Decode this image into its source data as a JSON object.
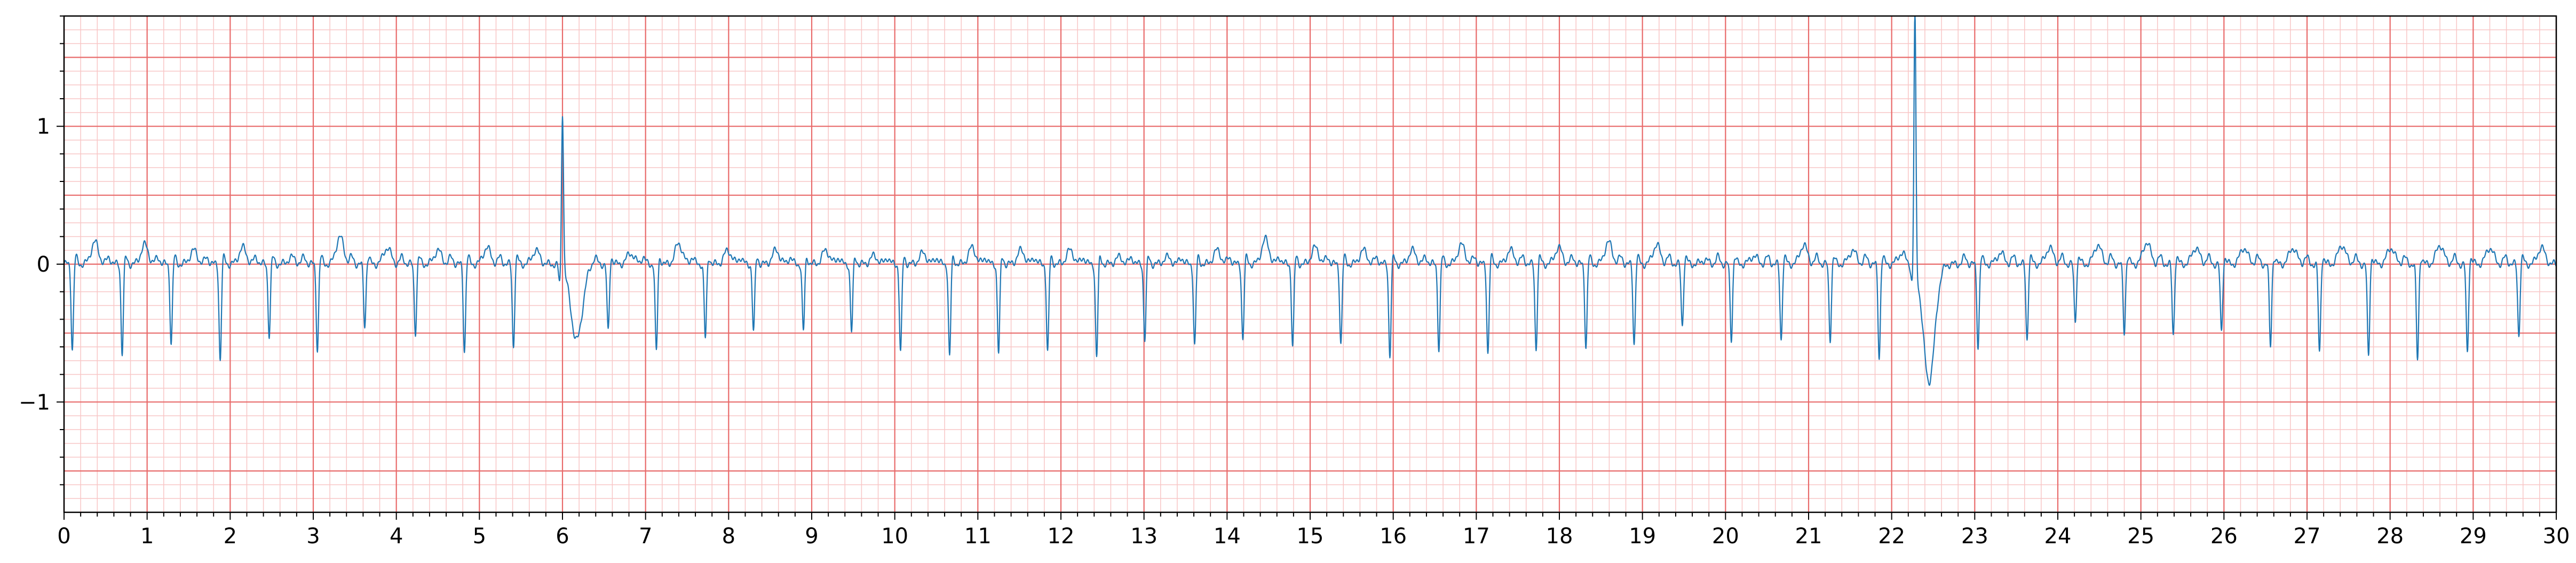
{
  "chart_data": {
    "type": "line",
    "title": "",
    "xlabel": "",
    "ylabel": "",
    "xlim": [
      0,
      30
    ],
    "ylim": [
      -1.8,
      1.8
    ],
    "x_ticks": [
      "0",
      "1",
      "2",
      "3",
      "4",
      "5",
      "6",
      "7",
      "8",
      "9",
      "10",
      "11",
      "12",
      "13",
      "14",
      "15",
      "16",
      "17",
      "18",
      "19",
      "20",
      "21",
      "22",
      "23",
      "24",
      "25",
      "26",
      "27",
      "28",
      "29",
      "30"
    ],
    "y_ticks": [
      {
        "value": 1,
        "label": "1"
      },
      {
        "value": 0,
        "label": "0"
      },
      {
        "value": -1,
        "label": "−1"
      }
    ],
    "grid": {
      "major_x": 1,
      "minor_x": 0.2,
      "major_y": 0.5,
      "minor_y": 0.1
    },
    "colors": {
      "line": "#1f77b4",
      "major_grid": "#e86a6a",
      "minor_grid": "#f8c6c6",
      "axis": "#000000",
      "background": "#ffffff"
    },
    "series": [
      {
        "beats": [
          0.1,
          0.7,
          1.29,
          1.88,
          2.47,
          3.05,
          3.62,
          4.23,
          4.82,
          5.41,
          6.0,
          6.55,
          7.13,
          7.72,
          8.3,
          8.9,
          9.48,
          10.07,
          10.66,
          11.25,
          11.84,
          12.43,
          13.01,
          13.61,
          14.19,
          14.79,
          15.37,
          15.96,
          16.55,
          17.14,
          17.72,
          18.32,
          18.9,
          19.48,
          20.07,
          20.67,
          21.26,
          21.85,
          22.28,
          23.04,
          23.63,
          24.21,
          24.8,
          25.39,
          25.97,
          26.56,
          27.15,
          27.74,
          28.33,
          28.93,
          29.55
        ],
        "r_amplitudes": [
          -0.62,
          -0.65,
          -0.58,
          -0.7,
          -0.52,
          -0.62,
          -0.45,
          -0.5,
          -0.63,
          -0.6,
          1.05,
          -0.5,
          -0.65,
          -0.55,
          -0.5,
          -0.5,
          -0.5,
          -0.65,
          -0.68,
          -0.65,
          -0.65,
          -0.68,
          -0.55,
          -0.6,
          -0.55,
          -0.6,
          -0.58,
          -0.67,
          -0.62,
          -0.65,
          -0.62,
          -0.6,
          -0.58,
          -0.45,
          -0.55,
          -0.55,
          -0.55,
          -0.68,
          1.78,
          -0.6,
          -0.55,
          -0.42,
          -0.5,
          -0.52,
          -0.5,
          -0.6,
          -0.65,
          -0.68,
          -0.7,
          -0.65,
          -0.52
        ],
        "t_amplitudes": [
          0.16,
          0.14,
          0.1,
          0.12,
          0.05,
          0.2,
          0.12,
          0.1,
          0.12,
          0.1,
          -0.55,
          0.08,
          0.15,
          0.1,
          0.1,
          0.1,
          0.06,
          0.08,
          0.12,
          0.1,
          0.1,
          0.05,
          0.05,
          0.1,
          0.18,
          0.12,
          0.1,
          0.1,
          0.14,
          0.1,
          0.12,
          0.16,
          0.14,
          0.03,
          0.06,
          0.14,
          0.1,
          0.08,
          -0.85,
          0.08,
          0.12,
          0.14,
          0.16,
          0.12,
          0.12,
          0.12,
          0.14,
          0.12,
          0.14,
          0.12,
          0.12
        ]
      }
    ]
  }
}
